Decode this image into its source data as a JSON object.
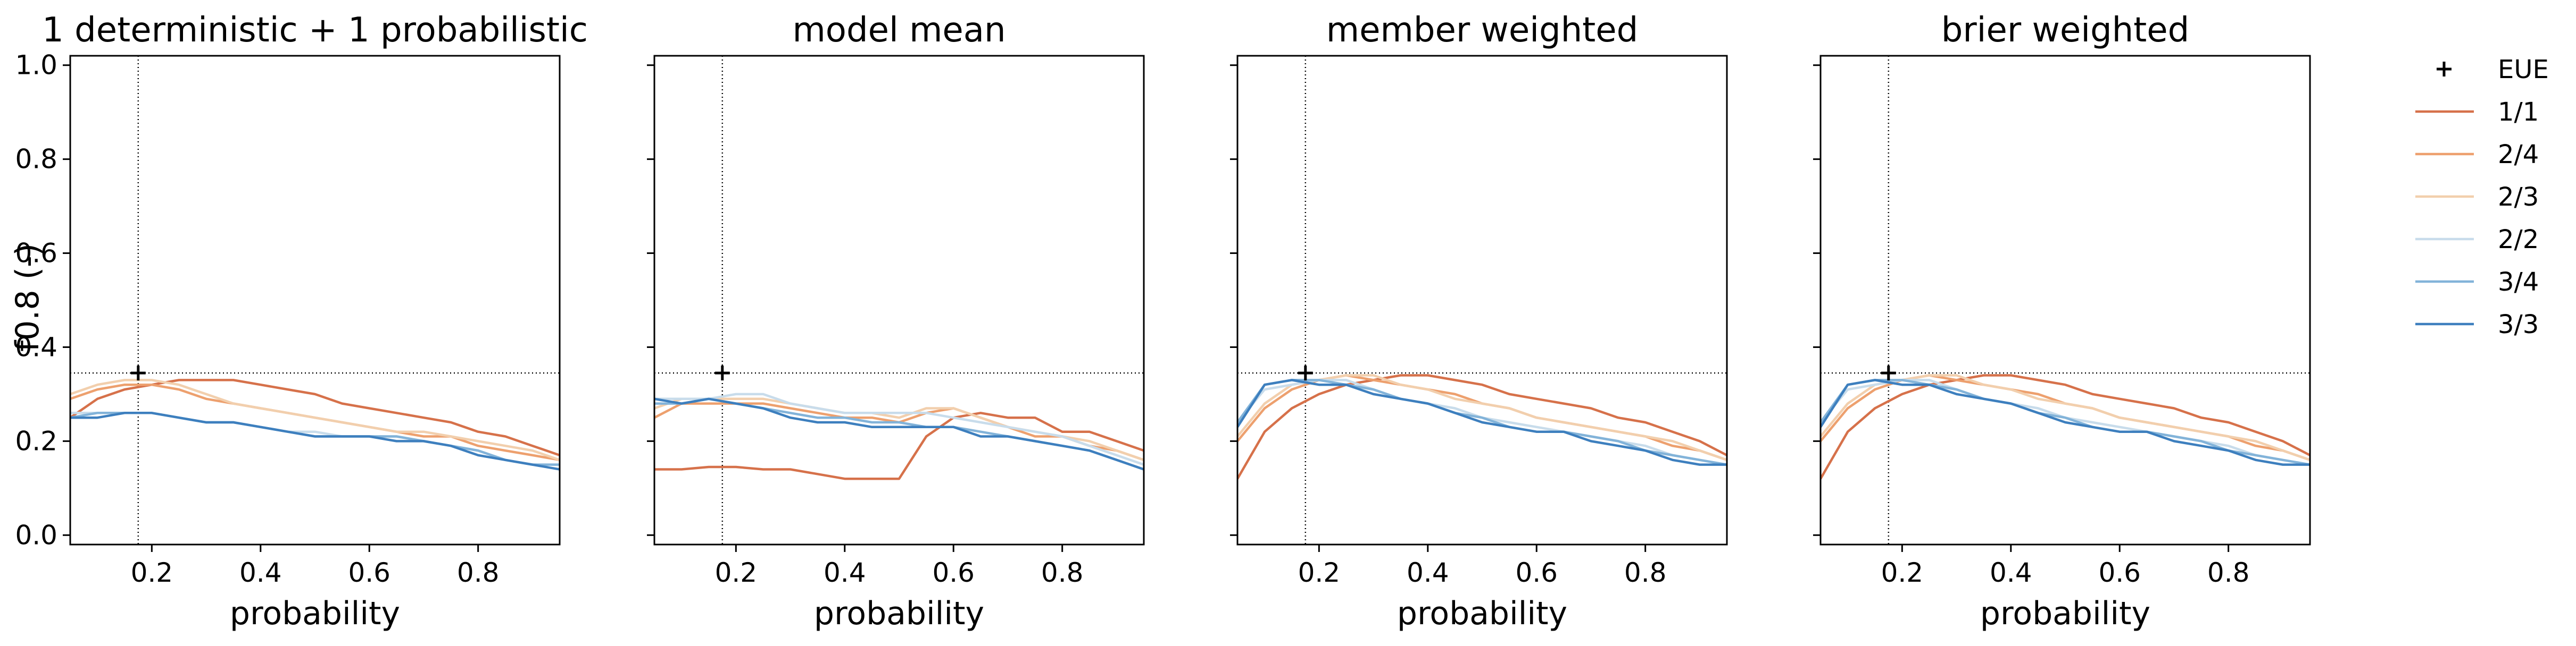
{
  "figure": {
    "ylabel": "f0.8 (-)"
  },
  "legend": {
    "entries": [
      {
        "label": "EUE",
        "kind": "marker",
        "color": "#000000"
      },
      {
        "label": "1/1",
        "kind": "line",
        "color": "#d6714a"
      },
      {
        "label": "2/4",
        "kind": "line",
        "color": "#eda06e"
      },
      {
        "label": "2/3",
        "kind": "line",
        "color": "#f2cfad"
      },
      {
        "label": "2/2",
        "kind": "line",
        "color": "#c8dceb"
      },
      {
        "label": "3/4",
        "kind": "line",
        "color": "#82b3d9"
      },
      {
        "label": "3/3",
        "kind": "line",
        "color": "#3d7fbe"
      }
    ],
    "placement": "outside-right"
  },
  "chart_data": [
    {
      "type": "line",
      "title": "1 deterministic + 1 probabilistic",
      "xlabel": "probability",
      "ylabel": "f0.8 (-)",
      "xlim": [
        0.05,
        0.95
      ],
      "ylim": [
        -0.02,
        1.02
      ],
      "xticks": [
        "0.2",
        "0.4",
        "0.6",
        "0.8"
      ],
      "yticks": [
        "0.0",
        "0.2",
        "0.4",
        "0.6",
        "0.8",
        "1.0"
      ],
      "x": [
        0.05,
        0.1,
        0.15,
        0.2,
        0.25,
        0.3,
        0.35,
        0.4,
        0.45,
        0.5,
        0.55,
        0.6,
        0.65,
        0.7,
        0.75,
        0.8,
        0.85,
        0.9,
        0.95
      ],
      "reference": {
        "vline_x": 0.175,
        "hline_y": 0.345
      },
      "eue_marker": {
        "x": 0.175,
        "y": 0.345
      },
      "series": [
        {
          "name": "1/1",
          "values": [
            0.25,
            0.29,
            0.31,
            0.32,
            0.33,
            0.33,
            0.33,
            0.32,
            0.31,
            0.3,
            0.28,
            0.27,
            0.26,
            0.25,
            0.24,
            0.22,
            0.21,
            0.19,
            0.17
          ]
        },
        {
          "name": "2/4",
          "values": [
            0.29,
            0.31,
            0.32,
            0.32,
            0.31,
            0.29,
            0.28,
            0.27,
            0.26,
            0.25,
            0.24,
            0.23,
            0.22,
            0.21,
            0.21,
            0.19,
            0.18,
            0.17,
            0.16
          ]
        },
        {
          "name": "2/3",
          "values": [
            0.3,
            0.32,
            0.33,
            0.33,
            0.32,
            0.3,
            0.28,
            0.27,
            0.26,
            0.25,
            0.24,
            0.23,
            0.22,
            0.22,
            0.21,
            0.2,
            0.19,
            0.18,
            0.16
          ]
        },
        {
          "name": "2/2",
          "values": [
            0.26,
            0.26,
            0.26,
            0.26,
            0.25,
            0.24,
            0.24,
            0.23,
            0.22,
            0.22,
            0.21,
            0.21,
            0.21,
            0.2,
            0.19,
            0.18,
            0.16,
            0.15,
            0.15
          ]
        },
        {
          "name": "3/4",
          "values": [
            0.25,
            0.26,
            0.26,
            0.26,
            0.25,
            0.24,
            0.24,
            0.23,
            0.22,
            0.21,
            0.21,
            0.21,
            0.21,
            0.2,
            0.19,
            0.18,
            0.16,
            0.15,
            0.15
          ]
        },
        {
          "name": "3/3",
          "values": [
            0.25,
            0.25,
            0.26,
            0.26,
            0.25,
            0.24,
            0.24,
            0.23,
            0.22,
            0.21,
            0.21,
            0.21,
            0.2,
            0.2,
            0.19,
            0.17,
            0.16,
            0.15,
            0.14
          ]
        }
      ]
    },
    {
      "type": "line",
      "title": "model mean",
      "xlabel": "probability",
      "xlim": [
        0.05,
        0.95
      ],
      "ylim": [
        -0.02,
        1.02
      ],
      "xticks": [
        "0.2",
        "0.4",
        "0.6",
        "0.8"
      ],
      "x": [
        0.05,
        0.1,
        0.15,
        0.2,
        0.25,
        0.3,
        0.35,
        0.4,
        0.45,
        0.5,
        0.55,
        0.6,
        0.65,
        0.7,
        0.75,
        0.8,
        0.85,
        0.9,
        0.95
      ],
      "reference": {
        "vline_x": 0.175,
        "hline_y": 0.345
      },
      "eue_marker": {
        "x": 0.175,
        "y": 0.345
      },
      "series": [
        {
          "name": "1/1",
          "values": [
            0.14,
            0.14,
            0.145,
            0.145,
            0.14,
            0.14,
            0.13,
            0.12,
            0.12,
            0.12,
            0.21,
            0.25,
            0.26,
            0.25,
            0.25,
            0.22,
            0.22,
            0.2,
            0.18
          ]
        },
        {
          "name": "2/4",
          "values": [
            0.25,
            0.28,
            0.28,
            0.28,
            0.28,
            0.27,
            0.26,
            0.25,
            0.25,
            0.24,
            0.26,
            0.27,
            0.25,
            0.23,
            0.21,
            0.21,
            0.19,
            0.18,
            0.16
          ]
        },
        {
          "name": "2/3",
          "values": [
            0.27,
            0.29,
            0.29,
            0.29,
            0.29,
            0.28,
            0.27,
            0.26,
            0.26,
            0.25,
            0.27,
            0.27,
            0.25,
            0.23,
            0.22,
            0.21,
            0.2,
            0.18,
            0.16
          ]
        },
        {
          "name": "2/2",
          "values": [
            0.29,
            0.29,
            0.29,
            0.3,
            0.3,
            0.28,
            0.27,
            0.26,
            0.26,
            0.26,
            0.26,
            0.25,
            0.24,
            0.23,
            0.22,
            0.21,
            0.19,
            0.17,
            0.15
          ]
        },
        {
          "name": "3/4",
          "values": [
            0.28,
            0.28,
            0.29,
            0.28,
            0.27,
            0.26,
            0.25,
            0.25,
            0.24,
            0.24,
            0.23,
            0.23,
            0.22,
            0.21,
            0.2,
            0.19,
            0.18,
            0.16,
            0.14
          ]
        },
        {
          "name": "3/3",
          "values": [
            0.29,
            0.28,
            0.29,
            0.28,
            0.27,
            0.25,
            0.24,
            0.24,
            0.23,
            0.23,
            0.23,
            0.23,
            0.21,
            0.21,
            0.2,
            0.19,
            0.18,
            0.16,
            0.14
          ]
        }
      ]
    },
    {
      "type": "line",
      "title": "member weighted",
      "xlabel": "probability",
      "xlim": [
        0.05,
        0.95
      ],
      "ylim": [
        -0.02,
        1.02
      ],
      "xticks": [
        "0.2",
        "0.4",
        "0.6",
        "0.8"
      ],
      "x": [
        0.05,
        0.1,
        0.15,
        0.2,
        0.25,
        0.3,
        0.35,
        0.4,
        0.45,
        0.5,
        0.55,
        0.6,
        0.65,
        0.7,
        0.75,
        0.8,
        0.85,
        0.9,
        0.95
      ],
      "reference": {
        "vline_x": 0.175,
        "hline_y": 0.345
      },
      "eue_marker": {
        "x": 0.175,
        "y": 0.345
      },
      "series": [
        {
          "name": "1/1",
          "values": [
            0.12,
            0.22,
            0.27,
            0.3,
            0.32,
            0.33,
            0.34,
            0.34,
            0.33,
            0.32,
            0.3,
            0.29,
            0.28,
            0.27,
            0.25,
            0.24,
            0.22,
            0.2,
            0.17
          ]
        },
        {
          "name": "2/4",
          "values": [
            0.2,
            0.27,
            0.31,
            0.33,
            0.34,
            0.33,
            0.32,
            0.31,
            0.3,
            0.28,
            0.27,
            0.25,
            0.24,
            0.23,
            0.22,
            0.21,
            0.19,
            0.18,
            0.16
          ]
        },
        {
          "name": "2/3",
          "values": [
            0.21,
            0.28,
            0.32,
            0.33,
            0.34,
            0.34,
            0.32,
            0.31,
            0.29,
            0.28,
            0.27,
            0.25,
            0.24,
            0.23,
            0.22,
            0.21,
            0.2,
            0.18,
            0.16
          ]
        },
        {
          "name": "2/2",
          "values": [
            0.24,
            0.31,
            0.32,
            0.33,
            0.33,
            0.31,
            0.29,
            0.28,
            0.27,
            0.25,
            0.24,
            0.23,
            0.22,
            0.21,
            0.2,
            0.19,
            0.17,
            0.16,
            0.15
          ]
        },
        {
          "name": "3/4",
          "values": [
            0.24,
            0.32,
            0.33,
            0.33,
            0.32,
            0.31,
            0.29,
            0.28,
            0.26,
            0.25,
            0.23,
            0.22,
            0.22,
            0.21,
            0.2,
            0.18,
            0.17,
            0.16,
            0.15
          ]
        },
        {
          "name": "3/3",
          "values": [
            0.23,
            0.32,
            0.33,
            0.32,
            0.32,
            0.3,
            0.29,
            0.28,
            0.26,
            0.24,
            0.23,
            0.22,
            0.22,
            0.2,
            0.19,
            0.18,
            0.16,
            0.15,
            0.15
          ]
        }
      ]
    },
    {
      "type": "line",
      "title": "brier weighted",
      "xlabel": "probability",
      "xlim": [
        0.05,
        0.95
      ],
      "ylim": [
        -0.02,
        1.02
      ],
      "xticks": [
        "0.2",
        "0.4",
        "0.6",
        "0.8"
      ],
      "x": [
        0.05,
        0.1,
        0.15,
        0.2,
        0.25,
        0.3,
        0.35,
        0.4,
        0.45,
        0.5,
        0.55,
        0.6,
        0.65,
        0.7,
        0.75,
        0.8,
        0.85,
        0.9,
        0.95
      ],
      "reference": {
        "vline_x": 0.175,
        "hline_y": 0.345
      },
      "eue_marker": {
        "x": 0.175,
        "y": 0.345
      },
      "series": [
        {
          "name": "1/1",
          "values": [
            0.12,
            0.22,
            0.27,
            0.3,
            0.32,
            0.33,
            0.34,
            0.34,
            0.33,
            0.32,
            0.3,
            0.29,
            0.28,
            0.27,
            0.25,
            0.24,
            0.22,
            0.2,
            0.17
          ]
        },
        {
          "name": "2/4",
          "values": [
            0.2,
            0.27,
            0.31,
            0.33,
            0.34,
            0.33,
            0.32,
            0.31,
            0.3,
            0.28,
            0.27,
            0.25,
            0.24,
            0.23,
            0.22,
            0.21,
            0.19,
            0.18,
            0.16
          ]
        },
        {
          "name": "2/3",
          "values": [
            0.21,
            0.28,
            0.32,
            0.33,
            0.34,
            0.34,
            0.32,
            0.31,
            0.29,
            0.28,
            0.27,
            0.25,
            0.24,
            0.23,
            0.22,
            0.21,
            0.2,
            0.18,
            0.16
          ]
        },
        {
          "name": "2/2",
          "values": [
            0.24,
            0.31,
            0.32,
            0.33,
            0.33,
            0.31,
            0.29,
            0.28,
            0.27,
            0.25,
            0.24,
            0.23,
            0.22,
            0.21,
            0.2,
            0.19,
            0.17,
            0.16,
            0.15
          ]
        },
        {
          "name": "3/4",
          "values": [
            0.24,
            0.32,
            0.33,
            0.33,
            0.32,
            0.31,
            0.29,
            0.28,
            0.26,
            0.25,
            0.23,
            0.22,
            0.22,
            0.21,
            0.2,
            0.18,
            0.17,
            0.16,
            0.15
          ]
        },
        {
          "name": "3/3",
          "values": [
            0.23,
            0.32,
            0.33,
            0.32,
            0.32,
            0.3,
            0.29,
            0.28,
            0.26,
            0.24,
            0.23,
            0.22,
            0.22,
            0.2,
            0.19,
            0.18,
            0.16,
            0.15,
            0.15
          ]
        }
      ]
    }
  ]
}
